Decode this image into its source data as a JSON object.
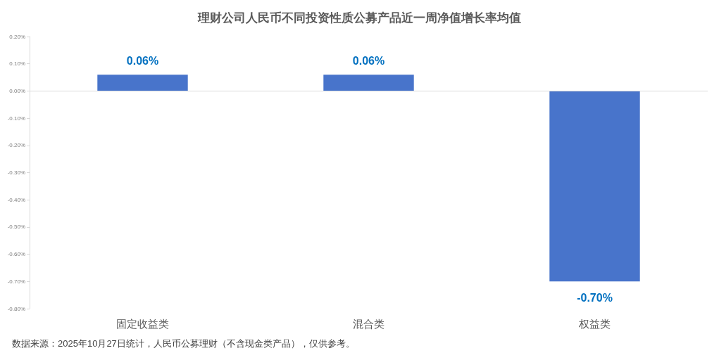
{
  "chart_data": {
    "type": "bar",
    "title": "理财公司人民币不同投资性质公募产品近一周净值增长率均值",
    "categories": [
      "固定收益类",
      "混合类",
      "权益类"
    ],
    "values": [
      0.06,
      0.06,
      -0.7
    ],
    "value_labels": [
      "0.06%",
      "0.06%",
      "-0.70%"
    ],
    "color": "#4874cb",
    "ylim": [
      -0.8,
      0.2
    ],
    "yticks": [
      {
        "value": -0.8,
        "label": "-0.80%"
      },
      {
        "value": -0.7,
        "label": "-0.70%"
      },
      {
        "value": -0.6,
        "label": "-0.60%"
      },
      {
        "value": -0.5,
        "label": "-0.50%"
      },
      {
        "value": -0.4,
        "label": "-0.40%"
      },
      {
        "value": -0.3,
        "label": "-0.30%"
      },
      {
        "value": -0.2,
        "label": "-0.20%"
      },
      {
        "value": -0.1,
        "label": "-0.10%"
      },
      {
        "value": 0,
        "label": "0.00%"
      },
      {
        "value": 0.1,
        "label": "0.10%"
      },
      {
        "value": 0.2,
        "label": "0.20%"
      }
    ],
    "ref_lines": [
      {
        "axis": "y",
        "value": 0,
        "color": "#d9d9d9"
      }
    ],
    "grid": false,
    "annotations": [
      "数据来源：2025年10月27日统计，人民币公募理财（不含现金类产品），仅供参考。"
    ]
  }
}
